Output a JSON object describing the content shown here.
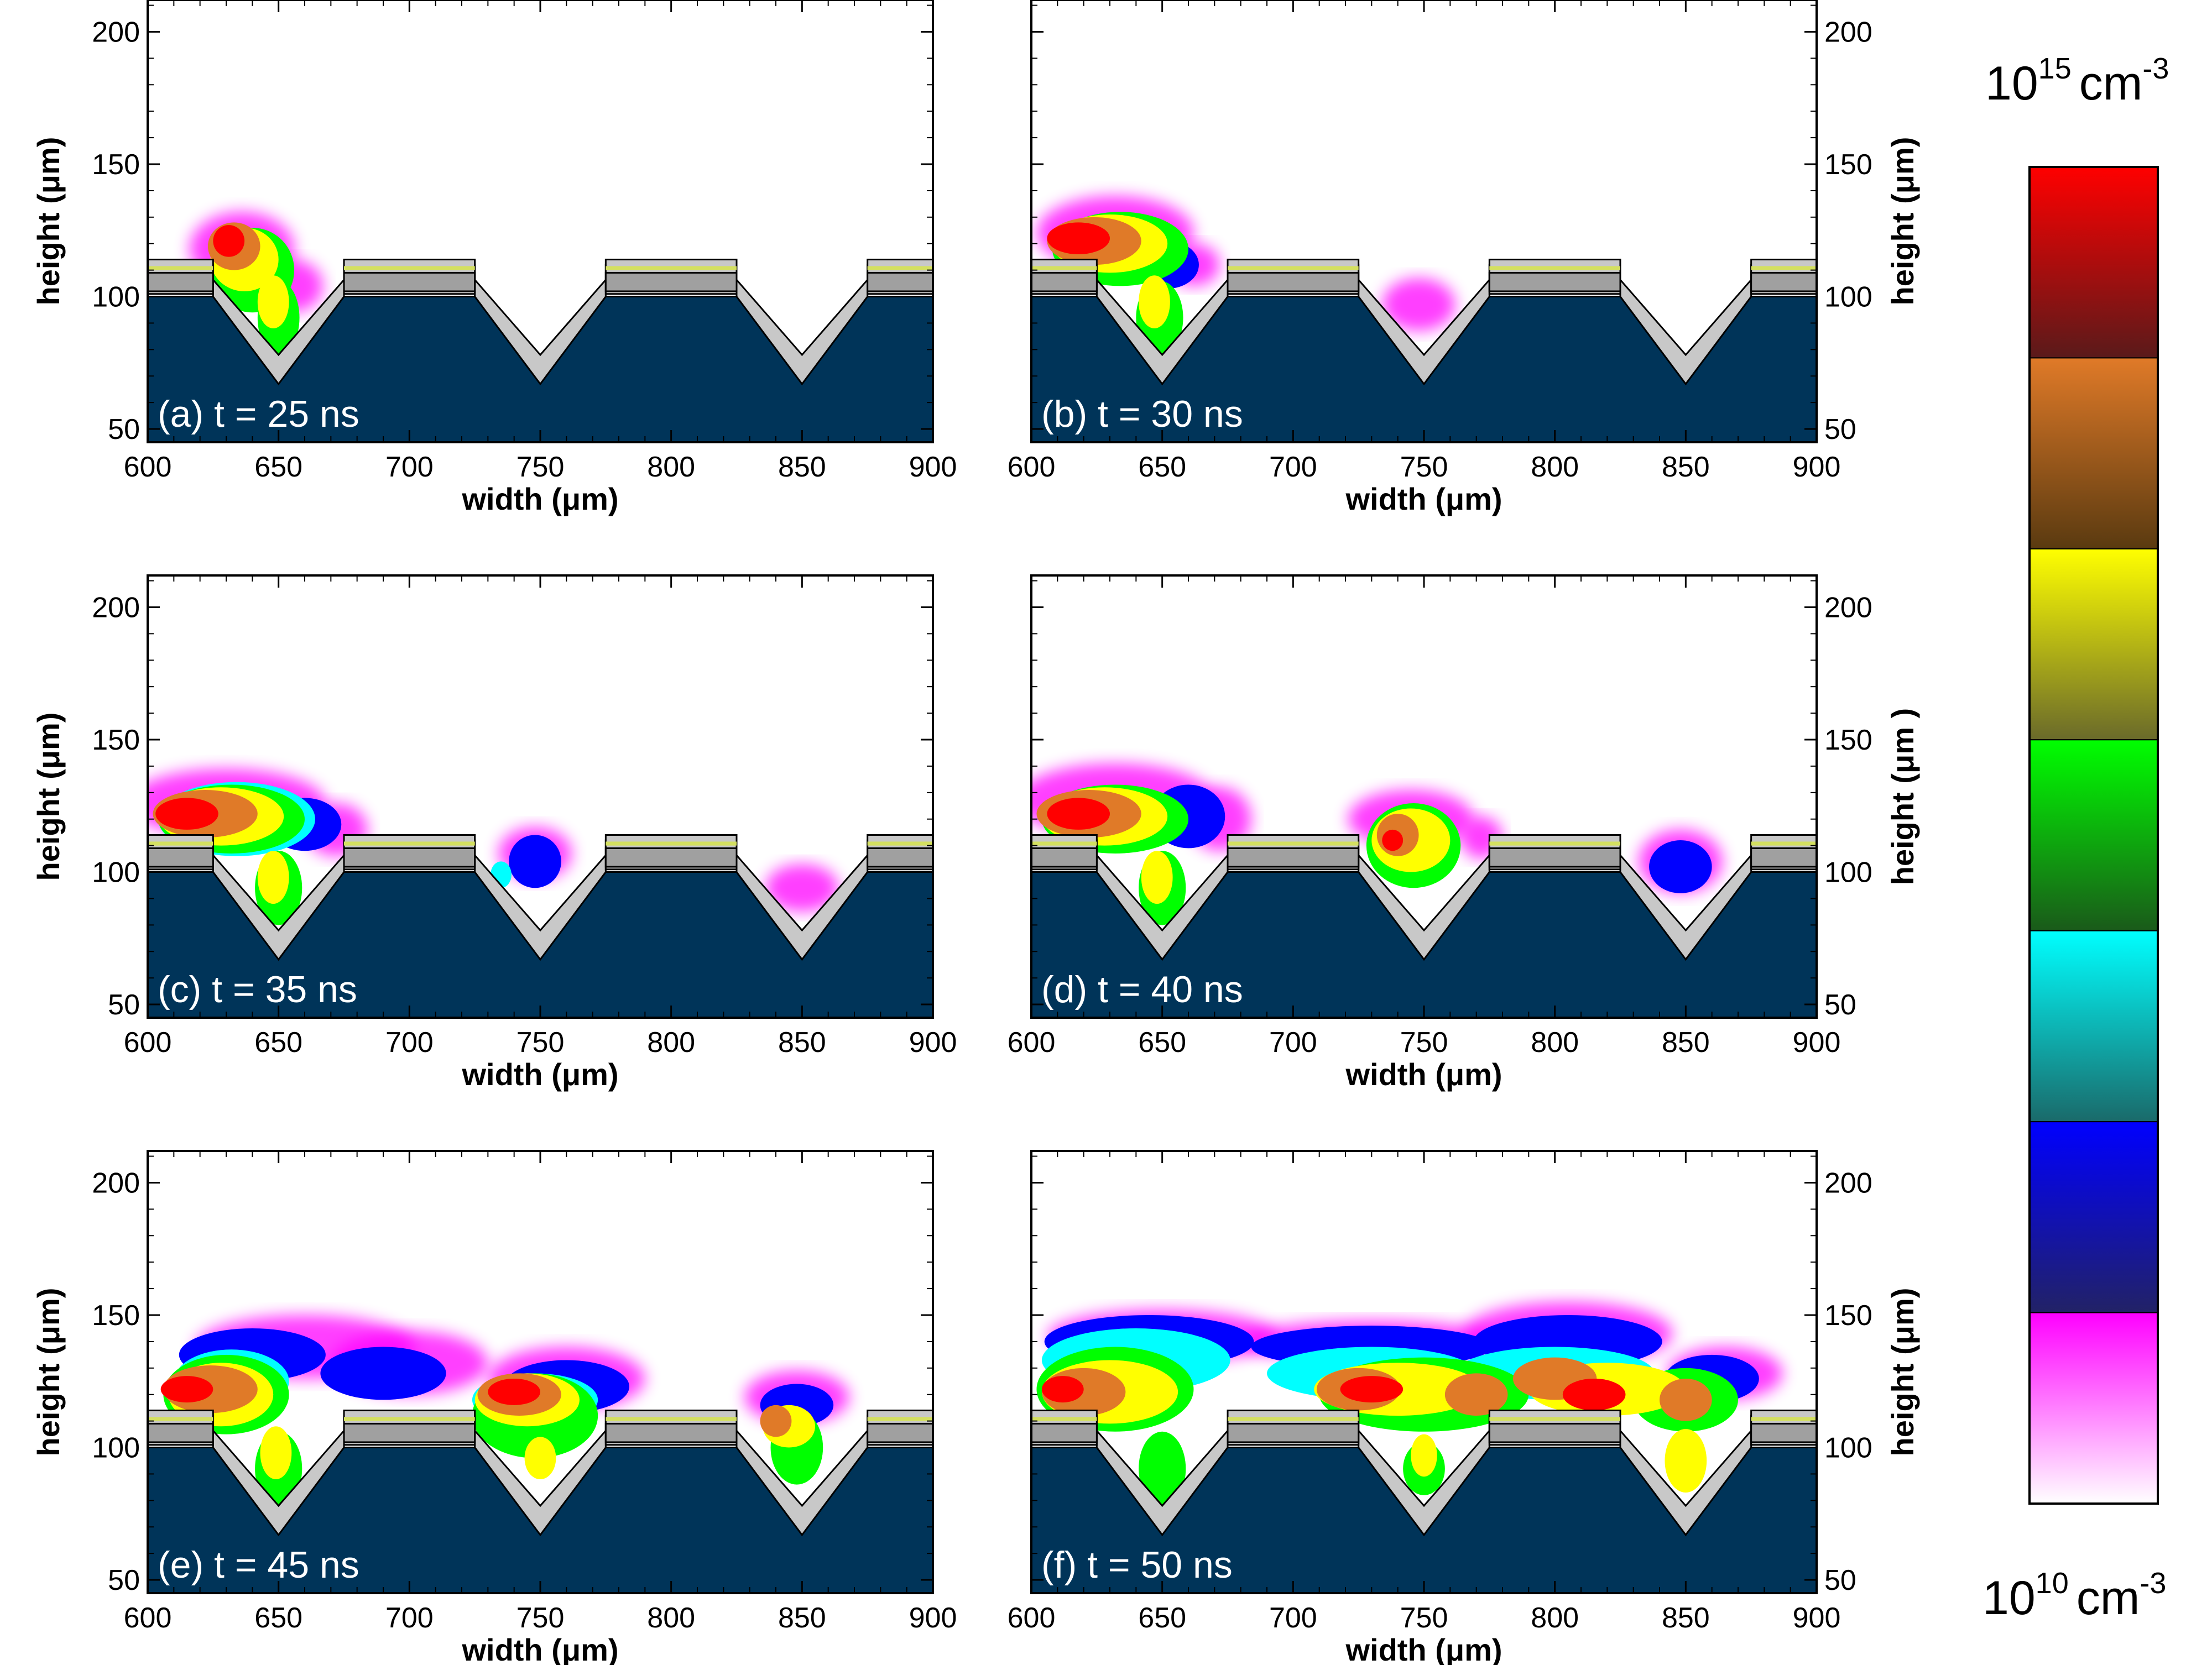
{
  "chart_data": [
    {
      "type": "heatmap",
      "panel_label": "(a) t = 25 ns",
      "xlabel": "width (μm)",
      "ylabel": "height (μm)",
      "xlim": [
        600,
        900
      ],
      "ylim": [
        45,
        212
      ],
      "xticks": [
        600,
        650,
        700,
        750,
        800,
        850,
        900
      ],
      "yticks": [
        50,
        100,
        150,
        200
      ],
      "ylabel_side": "left"
    },
    {
      "type": "heatmap",
      "panel_label": "(b) t = 30 ns",
      "xlabel": "width (μm)",
      "ylabel": "height (μm)",
      "xlim": [
        600,
        900
      ],
      "ylim": [
        45,
        212
      ],
      "xticks": [
        600,
        650,
        700,
        750,
        800,
        850,
        900
      ],
      "yticks": [
        50,
        100,
        150,
        200
      ],
      "ylabel_side": "right"
    },
    {
      "type": "heatmap",
      "panel_label": "(c) t = 35 ns",
      "xlabel": "width (μm)",
      "ylabel": "height (μm)",
      "xlim": [
        600,
        900
      ],
      "ylim": [
        45,
        212
      ],
      "xticks": [
        600,
        650,
        700,
        750,
        800,
        850,
        900
      ],
      "yticks": [
        50,
        100,
        150,
        200
      ],
      "ylabel_side": "left"
    },
    {
      "type": "heatmap",
      "panel_label": "(d) t = 40 ns",
      "xlabel": "width (μm)",
      "ylabel": "height (μm )",
      "xlim": [
        600,
        900
      ],
      "ylim": [
        45,
        212
      ],
      "xticks": [
        600,
        650,
        700,
        750,
        800,
        850,
        900
      ],
      "yticks": [
        50,
        100,
        150,
        200
      ],
      "ylabel_side": "right"
    },
    {
      "type": "heatmap",
      "panel_label": "(e) t = 45 ns",
      "xlabel": "width (μm)",
      "ylabel": "height (μm)",
      "xlim": [
        600,
        900
      ],
      "ylim": [
        45,
        212
      ],
      "xticks": [
        600,
        650,
        700,
        750,
        800,
        850,
        900
      ],
      "yticks": [
        50,
        100,
        150,
        200
      ],
      "ylabel_side": "left"
    },
    {
      "type": "heatmap",
      "panel_label": "(f) t = 50 ns",
      "xlabel": "width (μm)",
      "ylabel": "height (μm)",
      "xlim": [
        600,
        900
      ],
      "ylim": [
        45,
        212
      ],
      "xticks": [
        600,
        650,
        700,
        750,
        800,
        850,
        900
      ],
      "yticks": [
        50,
        100,
        150,
        200
      ],
      "ylabel_side": "right"
    }
  ],
  "colorbar": {
    "top_base": "10",
    "top_exp": "15",
    "top_unit": "cm",
    "top_unit_exp": "-3",
    "bottom_base": "10",
    "bottom_exp": "10",
    "bottom_unit": "cm",
    "bottom_unit_exp": "-3",
    "colors": [
      "#ff0000",
      "#5a1a1a",
      "#e07a28",
      "#5a3a10",
      "#ffff00",
      "#6a6a2a",
      "#00ff00",
      "#1a5a1a",
      "#00ffff",
      "#1a6a6a",
      "#0000ff",
      "#222266",
      "#ff00ff",
      "#ffffff"
    ]
  },
  "colors": {
    "substrate": "#003459",
    "dielectric": "#c8c8c8",
    "electrode": "#a0a0a0",
    "electrode_stripe": "#d4e060"
  }
}
